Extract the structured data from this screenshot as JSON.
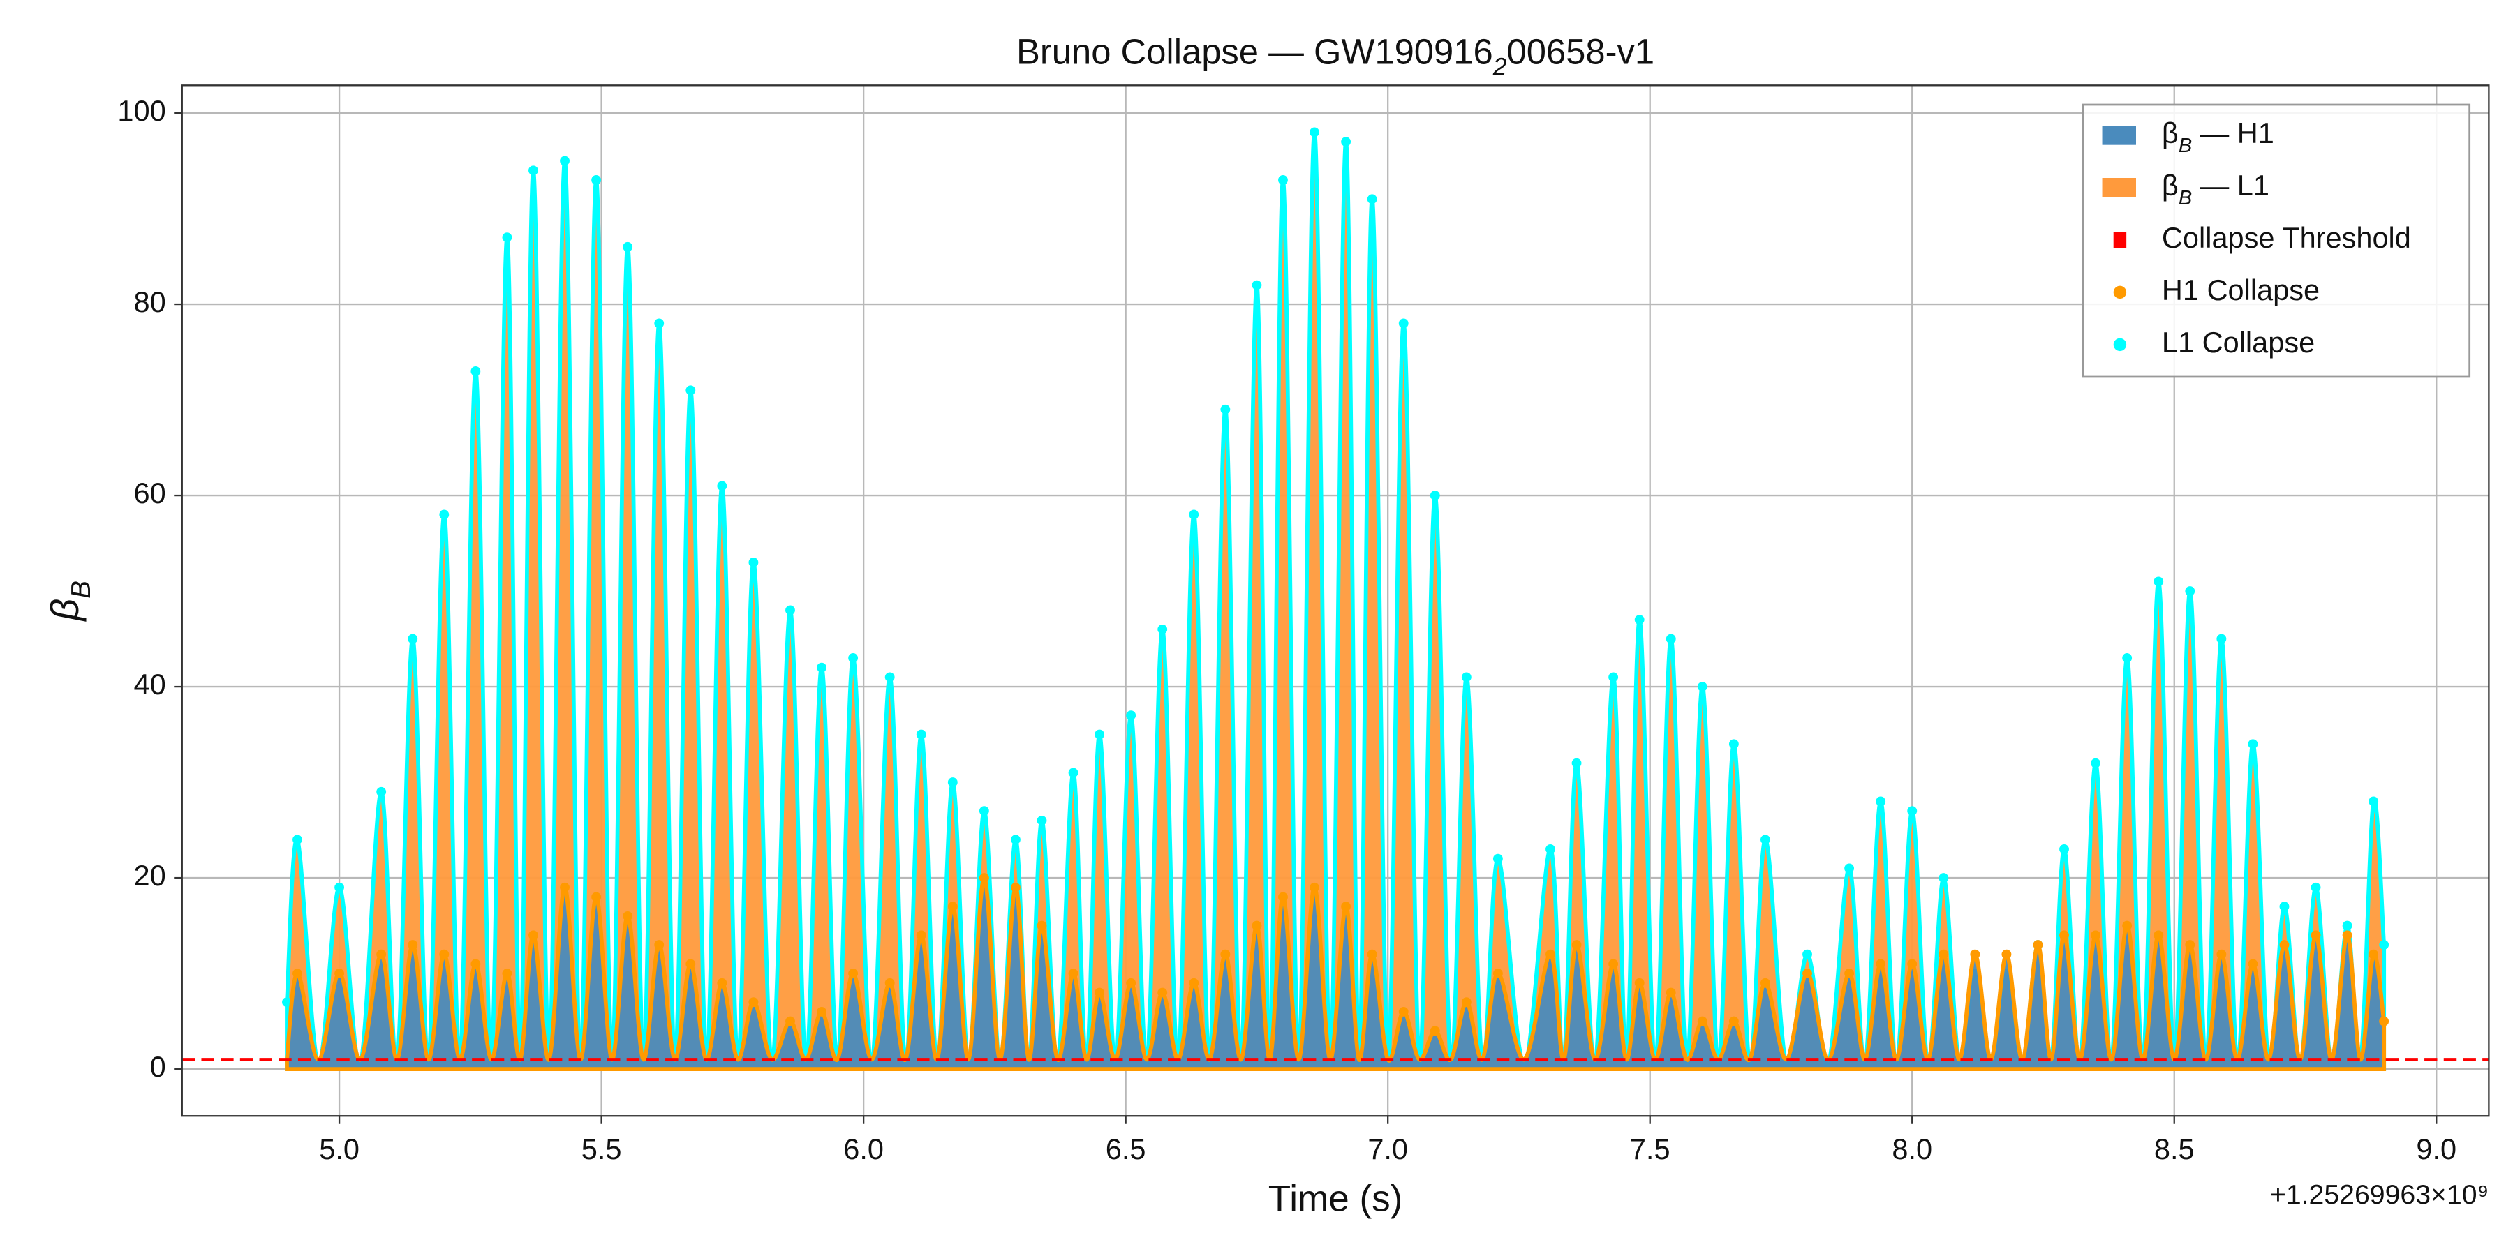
{
  "chart_data": {
    "type": "area",
    "title": "Bruno Collapse — GW190916_200658-v1",
    "x_label": "Time (s)",
    "y_label": "β_B",
    "x_offset_label": "+1.25269963×10⁹",
    "xlim": [
      4.7,
      9.1
    ],
    "ylim": [
      -4.9,
      102.9
    ],
    "xticks": [
      {
        "value": 5,
        "label": "5.0"
      },
      {
        "value": 5.5,
        "label": "5.5"
      },
      {
        "value": 6,
        "label": "6.0"
      },
      {
        "value": 6.5,
        "label": "6.5"
      },
      {
        "value": 7,
        "label": "7.0"
      },
      {
        "value": 7.5,
        "label": "7.5"
      },
      {
        "value": 8,
        "label": "8.0"
      },
      {
        "value": 8.5,
        "label": "8.5"
      },
      {
        "value": 9,
        "label": "9.0"
      }
    ],
    "yticks": [
      0,
      20,
      40,
      60,
      80,
      100
    ],
    "grid": true,
    "legend": "upper right",
    "x": [
      4.9,
      4.92,
      4.96,
      5.0,
      5.04,
      5.08,
      5.11,
      5.14,
      5.17,
      5.2,
      5.23,
      5.26,
      5.29,
      5.32,
      5.345,
      5.37,
      5.4,
      5.43,
      5.46,
      5.49,
      5.52,
      5.55,
      5.58,
      5.61,
      5.64,
      5.67,
      5.7,
      5.73,
      5.76,
      5.79,
      5.825,
      5.86,
      5.89,
      5.92,
      5.95,
      5.98,
      6.015,
      6.05,
      6.08,
      6.11,
      6.14,
      6.17,
      6.2,
      6.23,
      6.26,
      6.29,
      6.315,
      6.34,
      6.37,
      6.4,
      6.425,
      6.45,
      6.48,
      6.51,
      6.54,
      6.57,
      6.6,
      6.63,
      6.66,
      6.69,
      6.72,
      6.75,
      6.775,
      6.8,
      6.83,
      6.86,
      6.89,
      6.92,
      6.945,
      6.97,
      7.0,
      7.03,
      7.06,
      7.09,
      7.12,
      7.15,
      7.18,
      7.21,
      7.26,
      7.31,
      7.335,
      7.36,
      7.395,
      7.43,
      7.455,
      7.48,
      7.51,
      7.54,
      7.57,
      7.6,
      7.63,
      7.66,
      7.69,
      7.72,
      7.76,
      7.8,
      7.84,
      7.88,
      7.91,
      7.94,
      7.97,
      8.0,
      8.03,
      8.06,
      8.09,
      8.12,
      8.15,
      8.18,
      8.21,
      8.24,
      8.265,
      8.29,
      8.32,
      8.35,
      8.38,
      8.41,
      8.44,
      8.47,
      8.5,
      8.53,
      8.56,
      8.59,
      8.62,
      8.65,
      8.68,
      8.71,
      8.74,
      8.77,
      8.8,
      8.83,
      8.855,
      8.88,
      8.9
    ],
    "series": [
      {
        "name": "β_B — H1",
        "color": "#4a8bbd",
        "marker_name": "H1 Collapse",
        "marker_color": "#ff9a00",
        "values": [
          1,
          10,
          1,
          10,
          1,
          12,
          1,
          13,
          1,
          12,
          1,
          11,
          1,
          10,
          1,
          14,
          1,
          19,
          1,
          18,
          1,
          16,
          1,
          13,
          1,
          11,
          1,
          9,
          1,
          7,
          1,
          5,
          1,
          6,
          1,
          10,
          1,
          9,
          1,
          14,
          1,
          17,
          1,
          20,
          1,
          19,
          1,
          15,
          1,
          10,
          1,
          8,
          1,
          9,
          1,
          8,
          1,
          9,
          1,
          12,
          1,
          15,
          1,
          18,
          1,
          19,
          1,
          17,
          1,
          12,
          1,
          6,
          1,
          4,
          1,
          7,
          1,
          10,
          1,
          12,
          1,
          13,
          1,
          11,
          1,
          9,
          1,
          8,
          1,
          5,
          1,
          5,
          1,
          9,
          1,
          10,
          1,
          10,
          1,
          11,
          1,
          11,
          1,
          12,
          1,
          12,
          1,
          12,
          1,
          13,
          1,
          14,
          1,
          14,
          1,
          15,
          1,
          14,
          1,
          13,
          1,
          12,
          1,
          11,
          1,
          13,
          1,
          14,
          1,
          14,
          1,
          12,
          5
        ]
      },
      {
        "name": "β_B — L1",
        "color": "#ff9a3c",
        "marker_name": "L1 Collapse",
        "marker_color": "#00ffff",
        "values": [
          7,
          24,
          0.5,
          19,
          0.5,
          29,
          0.5,
          45,
          0.5,
          58,
          0.5,
          73,
          0.5,
          87,
          0.5,
          94,
          0.5,
          95,
          0.5,
          93,
          0.5,
          86,
          0.5,
          78,
          0.5,
          71,
          0.5,
          61,
          0.5,
          53,
          0.5,
          48,
          0.5,
          42,
          0.5,
          43,
          0.5,
          41,
          0.5,
          35,
          0.5,
          30,
          0.5,
          27,
          0.5,
          24,
          0.5,
          26,
          0.5,
          31,
          0.5,
          35,
          0.5,
          37,
          0.5,
          46,
          0.5,
          58,
          0.5,
          69,
          0.5,
          82,
          0.5,
          93,
          0.5,
          98,
          0.5,
          97,
          0.5,
          91,
          0.5,
          78,
          0.5,
          60,
          0.5,
          41,
          0.5,
          22,
          0.5,
          23,
          0.5,
          32,
          0.5,
          41,
          0.5,
          47,
          0.5,
          45,
          0.5,
          40,
          0.5,
          34,
          0.5,
          24,
          0.5,
          12,
          0.5,
          21,
          0.5,
          28,
          0.5,
          27,
          0.5,
          20,
          0.5,
          10,
          0.5,
          10,
          0.5,
          13,
          0.5,
          23,
          0.5,
          32,
          0.5,
          43,
          0.5,
          51,
          0.5,
          50,
          0.5,
          45,
          0.5,
          34,
          0.5,
          17,
          0.5,
          19,
          0.5,
          15,
          0.5,
          28,
          13
        ]
      }
    ],
    "threshold": {
      "name": "Collapse Threshold",
      "color": "#ff0000",
      "value": 1
    }
  }
}
